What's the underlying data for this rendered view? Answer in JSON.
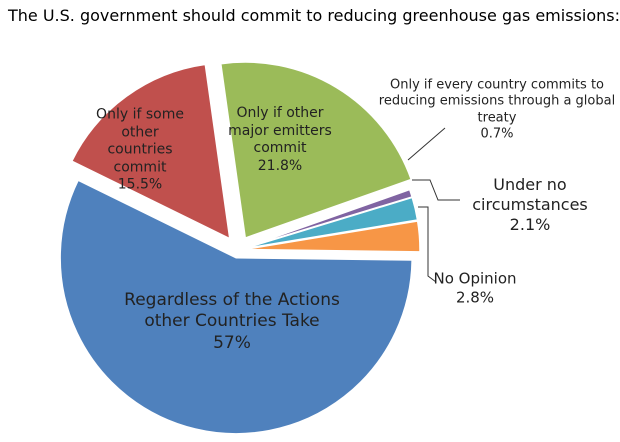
{
  "chart_data": {
    "type": "pie",
    "title": "The U.S. government should commit to reducing greenhouse gas emissions:",
    "categories": [
      "Only if other major emitters commit",
      "Only if every country commits to reducing emissions through a global treaty",
      "Under no circumstances",
      "No Opinion",
      "Regardless of the Actions other Countries Take",
      "Only if some other countries commit"
    ],
    "values": [
      21.8,
      0.7,
      2.1,
      2.8,
      57,
      15.5
    ],
    "value_labels": [
      "21.8%",
      "0.7%",
      "2.1%",
      "2.8%",
      "57%",
      "15.5%"
    ],
    "colors": [
      "#9bbb59",
      "#8064a2",
      "#4bacc6",
      "#f79646",
      "#4f81bd",
      "#c0504d"
    ]
  }
}
